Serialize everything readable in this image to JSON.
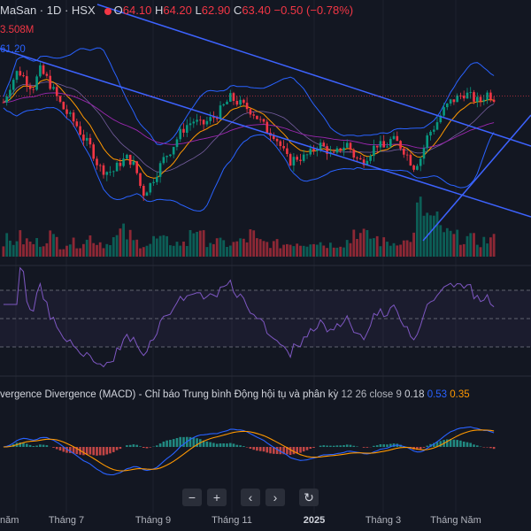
{
  "colors": {
    "bg": "#131722",
    "up": "#089981",
    "down": "#f23645",
    "bb": "#2962ff",
    "ma": "#ff9800",
    "trend": "#3d63ff",
    "rsi": "#7e57c2",
    "macd": "#2962ff",
    "signal": "#ff9800"
  },
  "legend": {
    "symbol": "MaSan · 1D · HSX",
    "o_label": "O",
    "o": "64.10",
    "h_label": "H",
    "h": "64.20",
    "l_label": "L",
    "l": "62.90",
    "c_label": "C",
    "c": "63.40",
    "change": "−0.50 (−0.78%)",
    "volume": "3.508M",
    "ma_value": "61.20"
  },
  "macd_legend": {
    "title": "vergence Divergence (MACD) - Chỉ báo Trung bình Động hội tụ và phân kỳ",
    "params": "12 26 close 9",
    "v1": "0.18",
    "v2": "0.53",
    "v3": "0.35"
  },
  "nav": {
    "zoom_out": "−",
    "zoom_in": "+",
    "prev": "‹",
    "next": "›",
    "reset": "↻"
  },
  "chart_data": {
    "type": "candlestick",
    "x_labels": [
      "năm",
      "Tháng 7",
      "Tháng 9",
      "Tháng 11",
      "2025",
      "Tháng 3",
      "Tháng Năm"
    ],
    "close_trend": [
      62,
      66,
      69,
      67,
      65,
      69,
      67,
      64,
      61,
      59,
      57,
      54,
      52,
      48,
      47,
      47,
      49,
      50,
      48,
      42,
      44,
      47,
      50,
      52,
      55,
      57,
      58,
      57,
      58,
      59,
      61,
      63,
      62,
      61,
      60,
      58,
      56,
      55,
      52,
      49,
      50,
      50,
      51,
      53,
      52,
      50,
      52,
      53,
      50,
      49,
      51,
      53,
      52,
      54,
      53,
      51,
      48,
      50,
      55,
      57,
      60,
      62,
      63,
      64,
      63,
      62,
      64,
      63
    ],
    "volume_profile": [
      0.35,
      0.3,
      0.4,
      0.32,
      0.28,
      0.3,
      0.45,
      0.36,
      0.25,
      0.3,
      0.28,
      0.33,
      0.4,
      0.3,
      0.26,
      0.38,
      0.5,
      0.42,
      0.3,
      0.28,
      0.26,
      0.35,
      0.32,
      0.3,
      0.27,
      0.25,
      0.6,
      0.4,
      0.33,
      0.3,
      0.28,
      0.26,
      0.3,
      0.35,
      0.45,
      0.3,
      0.28,
      0.26,
      0.25,
      0.27,
      0.3,
      0.28,
      0.35,
      0.3,
      0.26,
      0.25,
      0.28,
      0.32,
      0.55,
      0.45,
      0.4,
      0.38,
      0.3,
      0.28,
      0.35,
      0.3,
      0.4,
      0.95,
      0.8,
      0.7,
      0.55,
      0.45,
      0.4,
      0.38,
      0.35,
      0.3,
      0.33,
      0.35
    ],
    "rsi_levels": [
      70,
      50,
      30
    ],
    "last_price": "63.40",
    "bb_period": 20,
    "macd_params": [
      12,
      26,
      9
    ]
  }
}
